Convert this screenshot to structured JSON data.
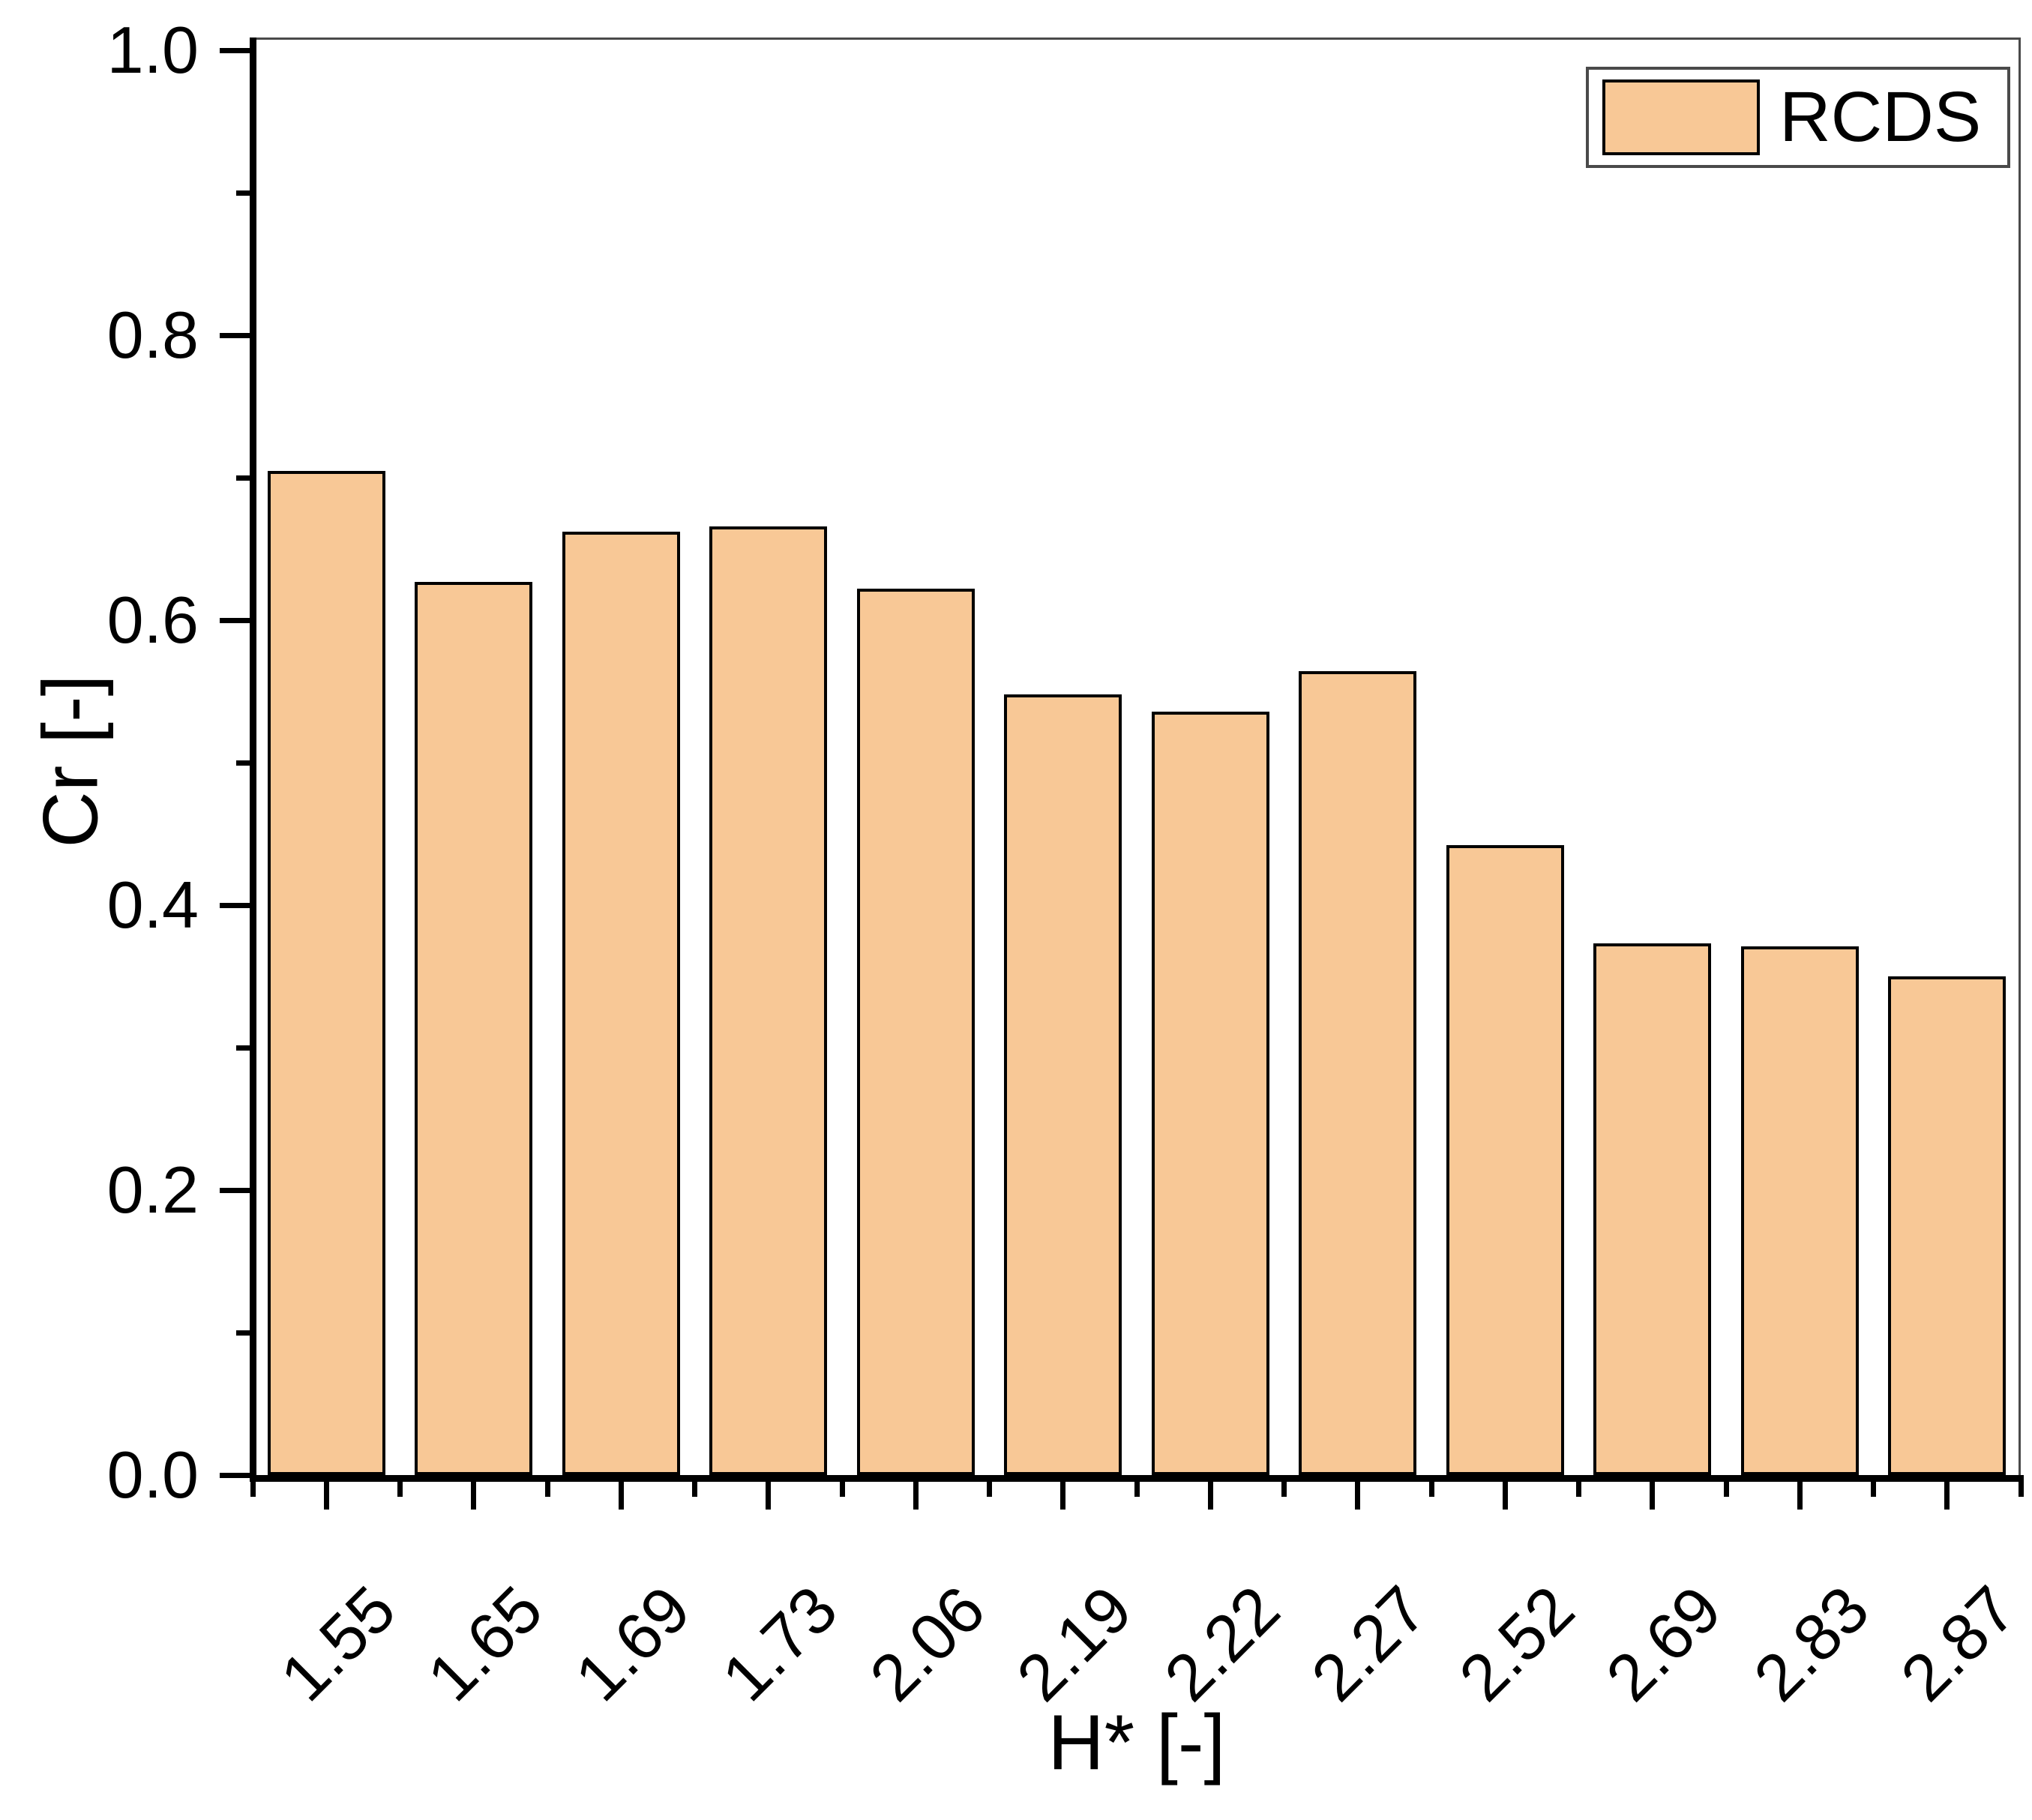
{
  "chart_data": {
    "type": "bar",
    "title": "",
    "categories": [
      "1.55",
      "1.65",
      "1.69",
      "1.73",
      "2.06",
      "2.19",
      "2.22",
      "2.27",
      "2.52",
      "2.69",
      "2.83",
      "2.87"
    ],
    "values": [
      0.705,
      0.627,
      0.662,
      0.666,
      0.622,
      0.548,
      0.536,
      0.564,
      0.442,
      0.373,
      0.371,
      0.35
    ],
    "xlabel": "H* [-]",
    "ylabel": "Cr [-]",
    "ylim": [
      0.0,
      1.0
    ],
    "y_major_ticks": [
      0.0,
      0.2,
      0.4,
      0.6,
      0.8,
      1.0
    ],
    "y_tick_labels": [
      "0.0",
      "0.2",
      "0.4",
      "0.6",
      "0.8",
      "1.0"
    ],
    "y_minor_ticks": [
      0.1,
      0.3,
      0.5,
      0.7,
      0.9
    ],
    "x_tick_rotation_deg": 45,
    "grid": false,
    "legend": {
      "position": "top-right",
      "entries": [
        {
          "label": "RCDS",
          "color": "#F8C896"
        }
      ]
    },
    "colors": {
      "bar_fill": "#F8C896",
      "bar_border": "#000000",
      "axis": "#000000",
      "frame": "#4a4a4a",
      "background": "#FFFFFF",
      "text": "#000000"
    }
  }
}
